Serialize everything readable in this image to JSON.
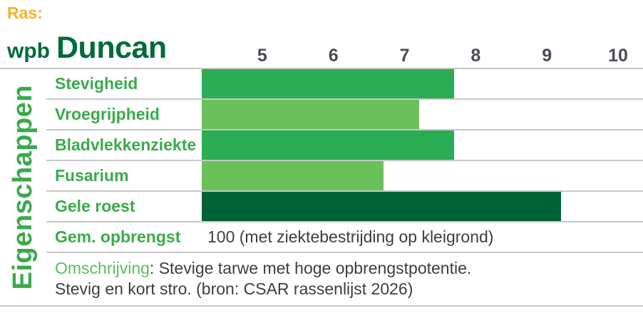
{
  "page": {
    "ras_label": "Ras:",
    "brand": {
      "prefix": "wpb",
      "name": "Duncan"
    }
  },
  "colors": {
    "ras_gold": "#F5B226",
    "brand_green": "#006B3B",
    "label_green": "#3BAA4D",
    "description_term_green": "#5BBC64",
    "tick_gray": "#4B4B54",
    "text_gray": "#3E3E40",
    "separator_gray": "#C8C8C8"
  },
  "chart_data": {
    "type": "bar",
    "orientation": "horizontal",
    "title": "wpb Duncan",
    "y_axis_title": "Eigenschappen",
    "categories": [
      "Stevigheid",
      "Vroegrijpheid",
      "Bladvlekkenziekte",
      "Fusarium",
      "Gele roest"
    ],
    "values": [
      7.7,
      7.2,
      7.7,
      6.7,
      9.2
    ],
    "bar_colors": [
      "#2BAD55",
      "#6CC05B",
      "#2BAD55",
      "#6CC05B",
      "#006338"
    ],
    "ticks": [
      5,
      6,
      7,
      8,
      9,
      10
    ],
    "xlim": [
      4.15,
      10.35
    ],
    "grid": false,
    "legend": "none",
    "extra_row": {
      "label": "Gem. opbrengst",
      "value_text": "100 (met ziektebestrijding op kleigrond)"
    }
  },
  "description": {
    "term": "Omschrijving",
    "line1_rest": ": Stevige tarwe met hoge opbrengstpotentie.",
    "line2": "Stevig en kort stro. (bron: CSAR rassenlijst 2026)"
  }
}
